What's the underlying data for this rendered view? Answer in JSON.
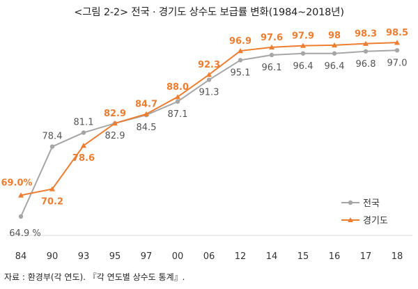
{
  "title": "<그림 2-2> 전국 · 경기도 상수도 보급률 변화(1984~2018년)",
  "source": "자료 : 환경부(각 연도). 『각 연도별 상수도 통계』.",
  "chart_data": {
    "type": "line",
    "title": "<그림 2-2> 전국 · 경기도 상수도 보급률 변화(1984~2018년)",
    "categories": [
      "84",
      "90",
      "93",
      "95",
      "97",
      "00",
      "06",
      "12",
      "14",
      "15",
      "16",
      "17",
      "18"
    ],
    "series": [
      {
        "name": "전국",
        "color": "#a6a6a6",
        "marker": "circle",
        "values": [
          64.9,
          78.4,
          81.1,
          82.9,
          84.5,
          87.1,
          91.3,
          95.1,
          96.1,
          96.4,
          96.4,
          96.8,
          97.0
        ],
        "labels": [
          "64.9 %",
          "78.4",
          "81.1",
          "82.9",
          "84.5",
          "87.1",
          "91.3",
          "95.1",
          "96.1",
          "96.4",
          "96.4",
          "96.8",
          "97.0"
        ]
      },
      {
        "name": "경기도",
        "color": "#ed7d31",
        "marker": "triangle",
        "values": [
          69.0,
          70.2,
          78.6,
          82.9,
          84.7,
          88.0,
          92.3,
          96.9,
          97.6,
          97.9,
          98.0,
          98.3,
          98.5
        ],
        "labels": [
          "69.0%",
          "70.2",
          "78.6",
          "82.9",
          "84.7",
          "88.0",
          "92.3",
          "96.9",
          "97.6",
          "97.9",
          "98",
          "98.3",
          "98.5"
        ]
      }
    ],
    "ylim": [
      63,
      100
    ],
    "xlabel": "",
    "ylabel": "",
    "grid": false,
    "legend": "bottom-right"
  }
}
